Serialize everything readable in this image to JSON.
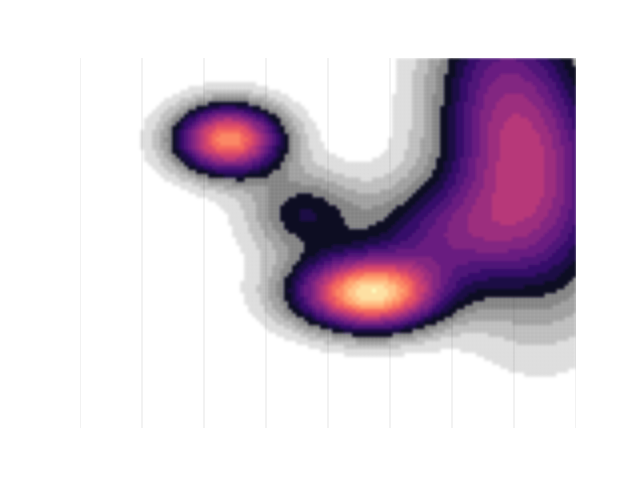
{
  "chart_data": {
    "type": "heatmap",
    "style": "filled-contour",
    "colormap": "magma",
    "axes_visible": false,
    "grid": true,
    "title": "",
    "xlabel": "",
    "ylabel": "",
    "xlim": [
      0,
      1
    ],
    "ylim": [
      0,
      1
    ],
    "levels": 20,
    "field": {
      "kind": "sum-of-gaussians",
      "peaks": [
        {
          "name": "",
          "x": 0.3,
          "y": 0.78,
          "sx": 0.075,
          "sy": 0.066,
          "amp": 1.0
        },
        {
          "name": "",
          "x": 0.6,
          "y": 0.36,
          "sx": 0.09,
          "sy": 0.068,
          "amp": 0.96
        },
        {
          "name": "",
          "x": 0.84,
          "y": 0.86,
          "sx": 0.1,
          "sy": 0.28,
          "amp": 0.5
        },
        {
          "name": "",
          "x": 0.95,
          "y": 0.65,
          "sx": 0.1,
          "sy": 0.24,
          "amp": 0.46
        },
        {
          "name": "",
          "x": 0.72,
          "y": 0.52,
          "sx": 0.11,
          "sy": 0.1,
          "amp": 0.4
        },
        {
          "name": "",
          "x": 0.45,
          "y": 0.58,
          "sx": 0.08,
          "sy": 0.08,
          "amp": 0.34
        },
        {
          "name": "",
          "x": 0.5,
          "y": 0.37,
          "sx": 0.09,
          "sy": 0.07,
          "amp": 0.3
        }
      ]
    }
  }
}
